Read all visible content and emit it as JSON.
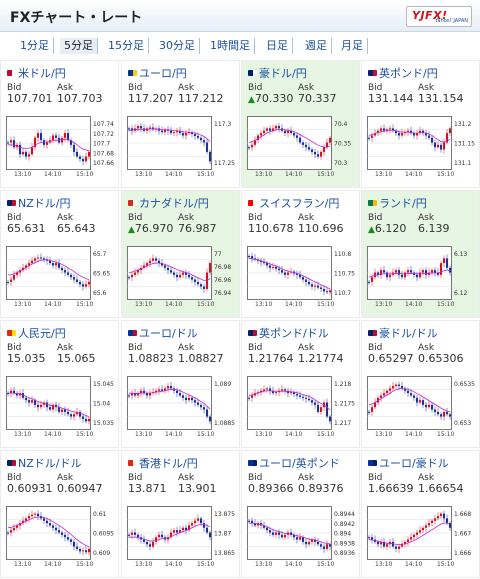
{
  "header": {
    "title": "FXチャート・レート",
    "logo_text": "YJFX!",
    "logo_sub": "Yahoo! JAPAN"
  },
  "tabs": [
    {
      "label": "1分足",
      "active": false
    },
    {
      "label": "5分足",
      "active": true
    },
    {
      "label": "15分足",
      "active": false
    },
    {
      "label": "30分足",
      "active": false
    },
    {
      "label": "1時間足",
      "active": false
    },
    {
      "label": "日足",
      "active": false
    },
    {
      "label": "週足",
      "active": false
    },
    {
      "label": "月足",
      "active": false
    }
  ],
  "labels": {
    "bid": "Bid",
    "ask": "Ask"
  },
  "times": [
    "13:10",
    "14:10",
    "15:10"
  ],
  "cards": [
    {
      "pair": "米ドル/円",
      "bid": "107.701",
      "ask": "107.703",
      "up": false,
      "hl": false,
      "flag": [
        "#bf0a30",
        "#ffffff"
      ],
      "yticks": [
        "107.74",
        "107.72",
        "107.7",
        "107.68",
        "107.66"
      ],
      "shape": [
        0.5,
        0.45,
        0.6,
        0.55,
        0.75,
        0.7,
        0.8,
        0.75,
        0.6,
        0.4,
        0.3,
        0.45,
        0.55,
        0.5,
        0.45,
        0.35,
        0.4,
        0.5,
        0.4,
        0.3,
        0.45,
        0.55,
        0.7,
        0.8,
        0.85,
        0.9,
        0.8,
        0.7
      ],
      "ma": [
        0.55,
        0.55,
        0.56,
        0.58,
        0.6,
        0.62,
        0.63,
        0.62,
        0.6,
        0.56,
        0.52,
        0.5,
        0.49,
        0.49,
        0.48,
        0.46,
        0.45,
        0.45,
        0.44,
        0.43,
        0.44,
        0.46,
        0.5,
        0.55,
        0.6,
        0.64,
        0.66,
        0.68
      ]
    },
    {
      "pair": "ユーロ/円",
      "bid": "117.207",
      "ask": "117.212",
      "up": false,
      "hl": false,
      "flag": [
        "#003399",
        "#ffcc00"
      ],
      "yticks": [
        "117.3",
        "117.25"
      ],
      "shape": [
        0.2,
        0.25,
        0.2,
        0.15,
        0.2,
        0.25,
        0.2,
        0.18,
        0.22,
        0.2,
        0.25,
        0.28,
        0.22,
        0.25,
        0.3,
        0.28,
        0.25,
        0.3,
        0.35,
        0.3,
        0.28,
        0.32,
        0.36,
        0.4,
        0.45,
        0.5,
        0.7,
        0.9
      ],
      "ma": [
        0.25,
        0.24,
        0.23,
        0.22,
        0.22,
        0.22,
        0.22,
        0.21,
        0.21,
        0.21,
        0.22,
        0.23,
        0.23,
        0.23,
        0.24,
        0.25,
        0.25,
        0.26,
        0.27,
        0.28,
        0.28,
        0.29,
        0.3,
        0.32,
        0.34,
        0.37,
        0.42,
        0.48
      ]
    },
    {
      "pair": "豪ドル/円",
      "bid": "70.330",
      "ask": "70.337",
      "up": true,
      "hl": true,
      "flag": [
        "#012169",
        "#ffffff"
      ],
      "yticks": [
        "70.4",
        "70.35",
        "70.3"
      ],
      "shape": [
        0.6,
        0.55,
        0.45,
        0.35,
        0.3,
        0.25,
        0.2,
        0.25,
        0.2,
        0.15,
        0.2,
        0.25,
        0.3,
        0.25,
        0.3,
        0.35,
        0.4,
        0.5,
        0.55,
        0.6,
        0.65,
        0.7,
        0.75,
        0.8,
        0.7,
        0.6,
        0.5,
        0.4
      ],
      "ma": [
        0.5,
        0.48,
        0.46,
        0.42,
        0.38,
        0.34,
        0.3,
        0.27,
        0.25,
        0.23,
        0.22,
        0.22,
        0.23,
        0.24,
        0.25,
        0.27,
        0.3,
        0.33,
        0.37,
        0.4,
        0.44,
        0.48,
        0.52,
        0.56,
        0.58,
        0.6,
        0.6,
        0.58
      ]
    },
    {
      "pair": "英ポンド/円",
      "bid": "131.144",
      "ask": "131.154",
      "up": false,
      "hl": false,
      "flag": [
        "#012169",
        "#c8102e"
      ],
      "yticks": [
        "131.2",
        "131.15",
        "131.1"
      ],
      "shape": [
        0.4,
        0.35,
        0.3,
        0.25,
        0.2,
        0.25,
        0.22,
        0.2,
        0.25,
        0.3,
        0.35,
        0.3,
        0.28,
        0.25,
        0.3,
        0.35,
        0.3,
        0.25,
        0.3,
        0.35,
        0.4,
        0.5,
        0.6,
        0.55,
        0.65,
        0.5,
        0.3,
        0.2
      ],
      "ma": [
        0.35,
        0.33,
        0.31,
        0.29,
        0.27,
        0.26,
        0.25,
        0.24,
        0.24,
        0.25,
        0.27,
        0.28,
        0.28,
        0.28,
        0.29,
        0.3,
        0.3,
        0.29,
        0.29,
        0.3,
        0.32,
        0.35,
        0.4,
        0.44,
        0.48,
        0.49,
        0.47,
        0.43
      ]
    },
    {
      "pair": "NZドル/円",
      "bid": "65.631",
      "ask": "65.643",
      "up": false,
      "hl": false,
      "flag": [
        "#012169",
        "#c8102e"
      ],
      "yticks": [
        "65.7",
        "65.65",
        "65.6"
      ],
      "shape": [
        0.7,
        0.65,
        0.55,
        0.5,
        0.45,
        0.4,
        0.35,
        0.3,
        0.25,
        0.2,
        0.18,
        0.2,
        0.22,
        0.25,
        0.3,
        0.35,
        0.3,
        0.4,
        0.45,
        0.5,
        0.55,
        0.6,
        0.65,
        0.7,
        0.75,
        0.8,
        0.75,
        0.7
      ],
      "ma": [
        0.55,
        0.55,
        0.53,
        0.5,
        0.47,
        0.44,
        0.4,
        0.36,
        0.32,
        0.29,
        0.26,
        0.24,
        0.23,
        0.23,
        0.24,
        0.26,
        0.28,
        0.3,
        0.33,
        0.36,
        0.4,
        0.44,
        0.48,
        0.53,
        0.57,
        0.6,
        0.63,
        0.65
      ]
    },
    {
      "pair": "カナダドル/円",
      "bid": "76.970",
      "ask": "76.987",
      "up": true,
      "hl": true,
      "flag": [
        "#d52b1e",
        "#ffffff"
      ],
      "yticks": [
        "77",
        "76.98",
        "76.96",
        "76.94"
      ],
      "shape": [
        0.6,
        0.55,
        0.5,
        0.45,
        0.4,
        0.35,
        0.3,
        0.25,
        0.2,
        0.25,
        0.3,
        0.35,
        0.4,
        0.45,
        0.5,
        0.55,
        0.6,
        0.55,
        0.5,
        0.55,
        0.6,
        0.65,
        0.7,
        0.75,
        0.8,
        0.85,
        0.5,
        0.3
      ],
      "ma": [
        0.5,
        0.49,
        0.47,
        0.45,
        0.42,
        0.39,
        0.36,
        0.33,
        0.31,
        0.3,
        0.3,
        0.31,
        0.33,
        0.35,
        0.38,
        0.41,
        0.44,
        0.46,
        0.48,
        0.5,
        0.52,
        0.55,
        0.58,
        0.61,
        0.64,
        0.67,
        0.66,
        0.63
      ]
    },
    {
      "pair": "スイスフラン/円",
      "bid": "110.678",
      "ask": "110.696",
      "up": false,
      "hl": false,
      "flag": [
        "#ff0000",
        "#ffffff"
      ],
      "yticks": [
        "110.8",
        "110.75",
        "110.7"
      ],
      "shape": [
        0.15,
        0.2,
        0.22,
        0.25,
        0.28,
        0.3,
        0.35,
        0.4,
        0.38,
        0.42,
        0.45,
        0.5,
        0.55,
        0.5,
        0.48,
        0.52,
        0.55,
        0.6,
        0.65,
        0.7,
        0.75,
        0.8,
        0.78,
        0.82,
        0.85,
        0.9,
        0.92,
        0.88
      ],
      "ma": [
        0.2,
        0.21,
        0.22,
        0.23,
        0.25,
        0.27,
        0.29,
        0.32,
        0.34,
        0.36,
        0.39,
        0.42,
        0.45,
        0.47,
        0.49,
        0.5,
        0.52,
        0.54,
        0.57,
        0.6,
        0.63,
        0.67,
        0.7,
        0.73,
        0.76,
        0.79,
        0.82,
        0.85
      ]
    },
    {
      "pair": "ランド/円",
      "bid": "6.120",
      "ask": "6.139",
      "up": true,
      "hl": true,
      "flag": [
        "#007a4d",
        "#ffb612"
      ],
      "yticks": [
        "6.13",
        "6.12"
      ],
      "shape": [
        0.7,
        0.6,
        0.5,
        0.55,
        0.45,
        0.5,
        0.6,
        0.55,
        0.5,
        0.45,
        0.55,
        0.6,
        0.5,
        0.45,
        0.5,
        0.55,
        0.6,
        0.5,
        0.45,
        0.55,
        0.5,
        0.45,
        0.5,
        0.55,
        0.3,
        0.2,
        0.4,
        0.5
      ],
      "ma": [
        0.6,
        0.58,
        0.56,
        0.55,
        0.54,
        0.53,
        0.53,
        0.53,
        0.53,
        0.52,
        0.52,
        0.53,
        0.53,
        0.52,
        0.52,
        0.52,
        0.53,
        0.53,
        0.52,
        0.52,
        0.52,
        0.51,
        0.51,
        0.51,
        0.49,
        0.46,
        0.45,
        0.46
      ]
    },
    {
      "pair": "人民元/円",
      "bid": "15.035",
      "ask": "15.065",
      "up": false,
      "hl": false,
      "flag": [
        "#de2910",
        "#ffde00"
      ],
      "yticks": [
        "15.045",
        "15.04",
        "15.035"
      ],
      "shape": [
        0.3,
        0.25,
        0.3,
        0.35,
        0.3,
        0.4,
        0.45,
        0.5,
        0.45,
        0.55,
        0.6,
        0.55,
        0.5,
        0.6,
        0.65,
        0.55,
        0.6,
        0.7,
        0.65,
        0.7,
        0.75,
        0.8,
        0.75,
        0.7,
        0.8,
        0.85,
        0.9,
        0.85
      ],
      "ma": [
        0.3,
        0.3,
        0.3,
        0.31,
        0.32,
        0.34,
        0.37,
        0.4,
        0.42,
        0.45,
        0.48,
        0.5,
        0.52,
        0.54,
        0.56,
        0.57,
        0.58,
        0.6,
        0.62,
        0.64,
        0.66,
        0.68,
        0.7,
        0.71,
        0.73,
        0.75,
        0.78,
        0.8
      ]
    },
    {
      "pair": "ユーロ/ドル",
      "bid": "1.08823",
      "ask": "1.08827",
      "up": false,
      "hl": false,
      "flag": [
        "#003399",
        "#bf0a30"
      ],
      "yticks": [
        "1.089",
        "1.0885"
      ],
      "shape": [
        0.35,
        0.3,
        0.35,
        0.3,
        0.25,
        0.3,
        0.35,
        0.3,
        0.28,
        0.25,
        0.22,
        0.25,
        0.2,
        0.15,
        0.2,
        0.25,
        0.3,
        0.35,
        0.4,
        0.45,
        0.4,
        0.45,
        0.5,
        0.55,
        0.6,
        0.65,
        0.8,
        0.9
      ],
      "ma": [
        0.3,
        0.3,
        0.31,
        0.31,
        0.3,
        0.3,
        0.3,
        0.3,
        0.29,
        0.28,
        0.27,
        0.26,
        0.25,
        0.23,
        0.22,
        0.22,
        0.23,
        0.25,
        0.28,
        0.31,
        0.34,
        0.37,
        0.4,
        0.44,
        0.48,
        0.52,
        0.58,
        0.64
      ]
    },
    {
      "pair": "英ポンド/ドル",
      "bid": "1.21764",
      "ask": "1.21774",
      "up": false,
      "hl": false,
      "flag": [
        "#012169",
        "#bf0a30"
      ],
      "yticks": [
        "1.218",
        "1.2175",
        "1.217"
      ],
      "shape": [
        0.4,
        0.35,
        0.3,
        0.28,
        0.25,
        0.22,
        0.2,
        0.25,
        0.3,
        0.28,
        0.25,
        0.22,
        0.25,
        0.3,
        0.28,
        0.32,
        0.35,
        0.38,
        0.4,
        0.42,
        0.45,
        0.5,
        0.55,
        0.7,
        0.6,
        0.5,
        0.8,
        0.9
      ],
      "ma": [
        0.35,
        0.34,
        0.32,
        0.3,
        0.28,
        0.26,
        0.25,
        0.25,
        0.26,
        0.26,
        0.26,
        0.26,
        0.26,
        0.27,
        0.27,
        0.28,
        0.29,
        0.31,
        0.33,
        0.35,
        0.37,
        0.4,
        0.44,
        0.49,
        0.52,
        0.55,
        0.6,
        0.66
      ]
    },
    {
      "pair": "豪ドル/ドル",
      "bid": "0.65297",
      "ask": "0.65306",
      "up": false,
      "hl": false,
      "flag": [
        "#012169",
        "#bf0a30"
      ],
      "yticks": [
        "0.6535",
        "0.653"
      ],
      "shape": [
        0.7,
        0.6,
        0.5,
        0.4,
        0.35,
        0.3,
        0.25,
        0.2,
        0.15,
        0.12,
        0.15,
        0.2,
        0.25,
        0.3,
        0.35,
        0.4,
        0.5,
        0.45,
        0.55,
        0.6,
        0.55,
        0.65,
        0.7,
        0.75,
        0.8,
        0.7,
        0.75,
        0.8
      ],
      "ma": [
        0.55,
        0.53,
        0.5,
        0.46,
        0.42,
        0.38,
        0.34,
        0.3,
        0.26,
        0.23,
        0.21,
        0.2,
        0.21,
        0.22,
        0.24,
        0.27,
        0.31,
        0.34,
        0.38,
        0.42,
        0.46,
        0.5,
        0.54,
        0.58,
        0.62,
        0.65,
        0.68,
        0.7
      ]
    },
    {
      "pair": "NZドル/ドル",
      "bid": "0.60931",
      "ask": "0.60947",
      "up": false,
      "hl": false,
      "flag": [
        "#012169",
        "#bf0a30"
      ],
      "yticks": [
        "0.61",
        "0.6095",
        "0.609"
      ],
      "shape": [
        0.5,
        0.45,
        0.4,
        0.35,
        0.3,
        0.25,
        0.2,
        0.15,
        0.12,
        0.1,
        0.15,
        0.2,
        0.25,
        0.3,
        0.35,
        0.4,
        0.45,
        0.5,
        0.55,
        0.6,
        0.65,
        0.7,
        0.8,
        0.85,
        0.9,
        0.88,
        0.92,
        0.85
      ],
      "ma": [
        0.4,
        0.39,
        0.37,
        0.35,
        0.32,
        0.29,
        0.26,
        0.23,
        0.2,
        0.18,
        0.17,
        0.17,
        0.18,
        0.2,
        0.23,
        0.27,
        0.31,
        0.35,
        0.39,
        0.44,
        0.49,
        0.54,
        0.6,
        0.65,
        0.7,
        0.74,
        0.78,
        0.8
      ]
    },
    {
      "pair": "香港ドル/円",
      "bid": "13.871",
      "ask": "13.901",
      "up": false,
      "hl": false,
      "flag": [
        "#de2910",
        "#ffffff"
      ],
      "yticks": [
        "13.875",
        "13.87",
        "13.865"
      ],
      "shape": [
        0.55,
        0.5,
        0.55,
        0.6,
        0.65,
        0.7,
        0.75,
        0.8,
        0.7,
        0.6,
        0.55,
        0.6,
        0.65,
        0.6,
        0.5,
        0.45,
        0.5,
        0.45,
        0.4,
        0.45,
        0.35,
        0.3,
        0.25,
        0.2,
        0.3,
        0.4,
        0.5,
        0.6
      ],
      "ma": [
        0.6,
        0.6,
        0.6,
        0.61,
        0.62,
        0.64,
        0.66,
        0.68,
        0.68,
        0.67,
        0.65,
        0.63,
        0.62,
        0.61,
        0.59,
        0.56,
        0.53,
        0.5,
        0.48,
        0.46,
        0.43,
        0.4,
        0.37,
        0.34,
        0.33,
        0.33,
        0.35,
        0.38
      ]
    },
    {
      "pair": "ユーロ/英ポンド",
      "bid": "0.89366",
      "ask": "0.89376",
      "up": false,
      "hl": false,
      "flag": [
        "#003399",
        "#012169"
      ],
      "yticks": [
        "0.8944",
        "0.8942",
        "0.894",
        "0.8938",
        "0.8936"
      ],
      "shape": [
        0.25,
        0.3,
        0.35,
        0.3,
        0.35,
        0.4,
        0.45,
        0.5,
        0.55,
        0.5,
        0.55,
        0.6,
        0.55,
        0.5,
        0.55,
        0.6,
        0.65,
        0.6,
        0.7,
        0.75,
        0.7,
        0.65,
        0.7,
        0.75,
        0.8,
        0.85,
        0.75,
        0.8
      ],
      "ma": [
        0.3,
        0.3,
        0.31,
        0.32,
        0.33,
        0.35,
        0.38,
        0.41,
        0.44,
        0.46,
        0.48,
        0.5,
        0.52,
        0.53,
        0.54,
        0.55,
        0.57,
        0.58,
        0.6,
        0.62,
        0.64,
        0.65,
        0.66,
        0.68,
        0.7,
        0.72,
        0.73,
        0.75
      ]
    },
    {
      "pair": "ユーロ/豪ドル",
      "bid": "1.66639",
      "ask": "1.66654",
      "up": false,
      "hl": false,
      "flag": [
        "#003399",
        "#012169"
      ],
      "yticks": [
        "1.668",
        "1.667",
        "1.666"
      ],
      "shape": [
        0.6,
        0.65,
        0.7,
        0.75,
        0.7,
        0.8,
        0.75,
        0.7,
        0.8,
        0.85,
        0.8,
        0.75,
        0.7,
        0.65,
        0.6,
        0.55,
        0.5,
        0.45,
        0.4,
        0.35,
        0.3,
        0.25,
        0.2,
        0.15,
        0.1,
        0.2,
        0.3,
        0.4
      ],
      "ma": [
        0.65,
        0.66,
        0.67,
        0.69,
        0.7,
        0.72,
        0.73,
        0.73,
        0.74,
        0.75,
        0.76,
        0.75,
        0.74,
        0.72,
        0.7,
        0.67,
        0.64,
        0.6,
        0.56,
        0.52,
        0.48,
        0.44,
        0.4,
        0.36,
        0.32,
        0.3,
        0.3,
        0.31
      ]
    }
  ]
}
